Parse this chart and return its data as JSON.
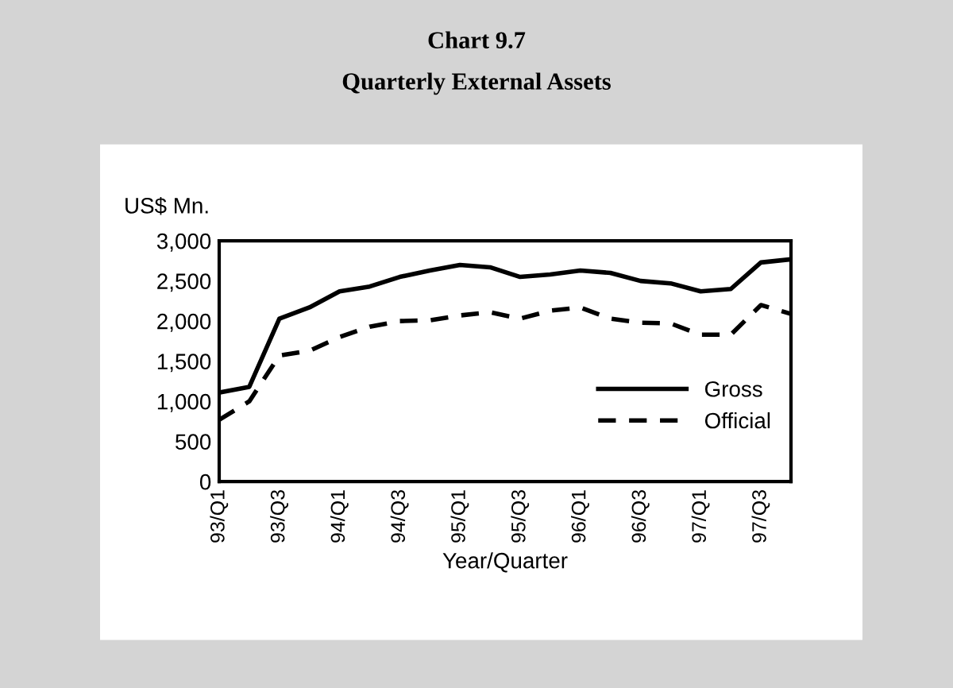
{
  "chart_data": {
    "type": "line",
    "title": "Chart 9.7",
    "subtitle": "Quarterly External Assets",
    "ylabel": "US$ Mn.",
    "xlabel": "Year/Quarter",
    "categories": [
      "93/Q1",
      null,
      "93/Q3",
      null,
      "94/Q1",
      null,
      "94/Q3",
      null,
      "95/Q1",
      null,
      "95/Q3",
      null,
      "96/Q1",
      null,
      "96/Q3",
      null,
      "97/Q1",
      null,
      "97/Q3",
      null
    ],
    "series": [
      {
        "name": "Gross",
        "color": "#000000",
        "line_style": "solid",
        "values": [
          1110,
          1180,
          2030,
          2170,
          2370,
          2430,
          2550,
          2630,
          2700,
          2670,
          2550,
          2580,
          2630,
          2600,
          2500,
          2470,
          2370,
          2400,
          2730,
          2770
        ]
      },
      {
        "name": "Official",
        "color": "#000000",
        "line_style": "dashed",
        "values": [
          770,
          1000,
          1570,
          1630,
          1800,
          1930,
          2000,
          2010,
          2070,
          2110,
          2030,
          2130,
          2170,
          2030,
          1980,
          1970,
          1830,
          1830,
          2200,
          2090
        ]
      }
    ],
    "ylim": [
      0,
      3000
    ],
    "yticks": [
      {
        "value": 0,
        "label": "0"
      },
      {
        "value": 500,
        "label": "500"
      },
      {
        "value": 1000,
        "label": "1,000"
      },
      {
        "value": 1500,
        "label": "1,500"
      },
      {
        "value": 2000,
        "label": "2,000"
      },
      {
        "value": 2500,
        "label": "2,500"
      },
      {
        "value": 3000,
        "label": "3,000"
      }
    ],
    "grid": false,
    "legend": "bottom right",
    "marker": "none"
  }
}
